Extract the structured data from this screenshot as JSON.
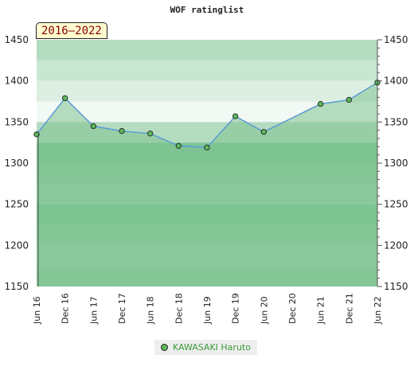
{
  "chart_data": {
    "type": "area",
    "title": "WOF ratinglist",
    "period_label": "2016–2022",
    "x": [
      "Jun 16",
      "Dec 16",
      "Jun 17",
      "Dec 17",
      "Jun 18",
      "Dec 18",
      "Jun 19",
      "Dec 19",
      "Jun 20",
      "Dec 20",
      "Jun 21",
      "Dec 21",
      "Jun 22"
    ],
    "series": [
      {
        "name": "KAWASAKI Haruto",
        "values": [
          1335,
          1379,
          1345,
          1339,
          1336,
          1321,
          1319,
          1357,
          1338,
          null,
          1372,
          1377,
          1398
        ]
      }
    ],
    "ylim": [
      1150,
      1450
    ],
    "yticks": [
      1150,
      1200,
      1250,
      1300,
      1350,
      1400,
      1450
    ],
    "grid": true,
    "legend_position": "bottom",
    "colors": {
      "line": "#5b9bd5",
      "marker": "#5cb85c",
      "fill": "#7fc28f",
      "legend_text": "#3a9a3a"
    }
  }
}
